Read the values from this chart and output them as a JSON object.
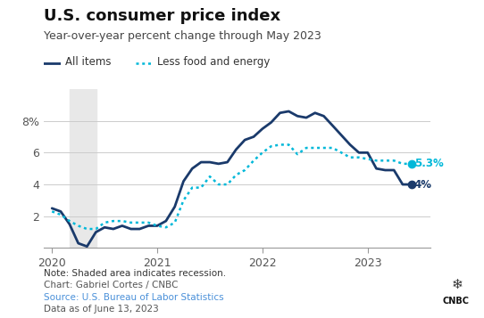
{
  "title": "U.S. consumer price index",
  "subtitle": "Year-over-year percent change through May 2023",
  "legend_items": [
    "All items",
    "Less food and energy"
  ],
  "recession_start": 2020.17,
  "recession_end": 2020.42,
  "ylim": [
    0,
    10
  ],
  "yticks": [
    2,
    4,
    6,
    8
  ],
  "ytick_labels": [
    "2",
    "4",
    "6",
    "8%"
  ],
  "xlim": [
    2019.92,
    2023.6
  ],
  "xticks": [
    2020,
    2021,
    2022,
    2023
  ],
  "all_items_color": "#1a3a6b",
  "less_food_color": "#00b8d9",
  "recession_color": "#e8e8e8",
  "note_text": "Note: Shaded area indicates recession.",
  "chart_text": "Chart: Gabriel Cortes / CNBC",
  "source_text": "Source: U.S. Bureau of Labor Statistics",
  "data_text": "Data as of June 13, 2023",
  "source_color": "#4a90d9",
  "all_items_x": [
    2020.0,
    2020.083,
    2020.167,
    2020.25,
    2020.333,
    2020.417,
    2020.5,
    2020.583,
    2020.667,
    2020.75,
    2020.833,
    2020.917,
    2021.0,
    2021.083,
    2021.167,
    2021.25,
    2021.333,
    2021.417,
    2021.5,
    2021.583,
    2021.667,
    2021.75,
    2021.833,
    2021.917,
    2022.0,
    2022.083,
    2022.167,
    2022.25,
    2022.333,
    2022.417,
    2022.5,
    2022.583,
    2022.667,
    2022.75,
    2022.833,
    2022.917,
    2023.0,
    2023.083,
    2023.167,
    2023.25,
    2023.333,
    2023.417
  ],
  "all_items_y": [
    2.5,
    2.3,
    1.5,
    0.3,
    0.1,
    1.0,
    1.3,
    1.2,
    1.4,
    1.2,
    1.2,
    1.4,
    1.4,
    1.7,
    2.6,
    4.2,
    5.0,
    5.4,
    5.4,
    5.3,
    5.4,
    6.2,
    6.8,
    7.0,
    7.5,
    7.9,
    8.5,
    8.6,
    8.3,
    8.2,
    8.5,
    8.3,
    7.7,
    7.1,
    6.5,
    6.0,
    6.0,
    5.0,
    4.9,
    4.9,
    4.0,
    4.0
  ],
  "less_food_y": [
    2.3,
    2.1,
    1.7,
    1.4,
    1.2,
    1.2,
    1.6,
    1.7,
    1.7,
    1.6,
    1.6,
    1.6,
    1.4,
    1.3,
    1.6,
    3.0,
    3.8,
    3.8,
    4.5,
    4.0,
    4.0,
    4.6,
    4.9,
    5.5,
    6.0,
    6.4,
    6.5,
    6.5,
    5.9,
    6.3,
    6.3,
    6.3,
    6.3,
    6.0,
    5.7,
    5.7,
    5.6,
    5.5,
    5.5,
    5.5,
    5.3,
    5.3
  ],
  "end_label_all": "4%",
  "end_label_less": "5.3%",
  "bg_color": "#ffffff",
  "grid_color": "#cccccc",
  "tick_color": "#555555",
  "spine_color": "#999999",
  "title_fontsize": 13,
  "subtitle_fontsize": 9,
  "legend_fontsize": 8.5,
  "tick_fontsize": 9,
  "note_fontsize": 7.5
}
